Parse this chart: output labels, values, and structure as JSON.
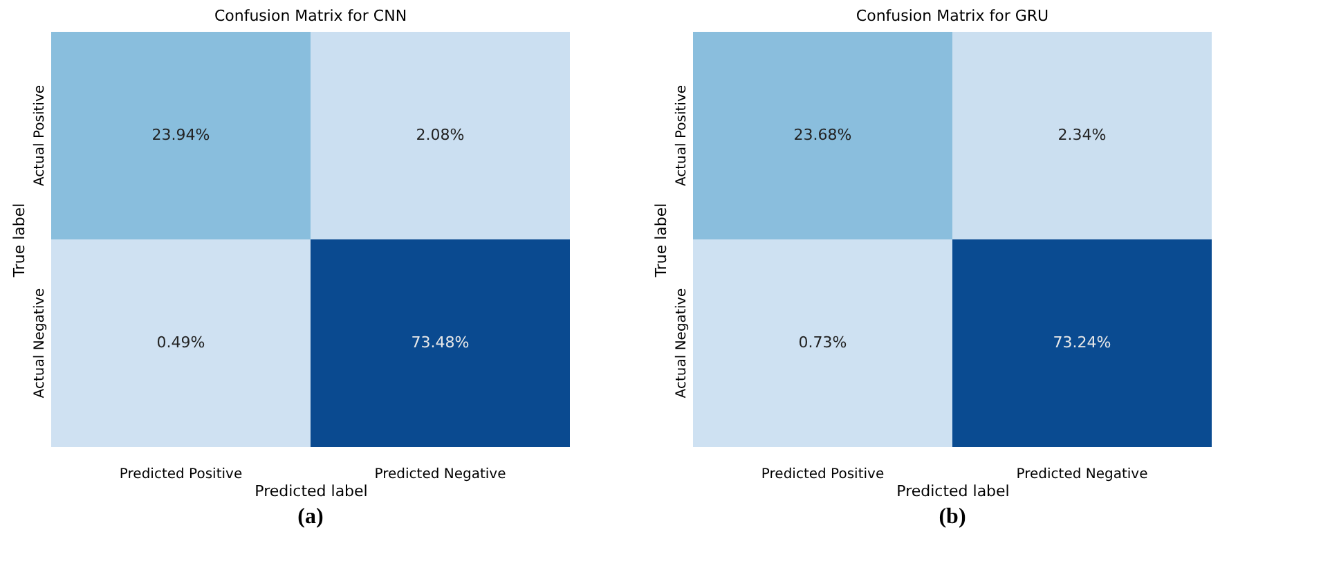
{
  "chart_data": [
    {
      "type": "heatmap",
      "title": "Confusion Matrix for CNN",
      "xlabel": "Predicted label",
      "ylabel": "True label",
      "categories": [
        "Predicted Positive",
        "Predicted Negative"
      ],
      "y_categories": [
        "Actual Positive",
        "Actual Negative"
      ],
      "cells": [
        [
          23.94,
          2.08
        ],
        [
          0.49,
          73.48
        ]
      ],
      "cell_labels": [
        [
          "23.94%",
          "2.08%"
        ],
        [
          "0.49%",
          "73.48%"
        ]
      ],
      "annotations": [
        "(a)"
      ]
    },
    {
      "type": "heatmap",
      "title": "Confusion Matrix for GRU",
      "xlabel": "Predicted label",
      "ylabel": "True label",
      "categories": [
        "Predicted Positive",
        "Predicted Negative"
      ],
      "y_categories": [
        "Actual Positive",
        "Actual Negative"
      ],
      "cells": [
        [
          23.68,
          2.34
        ],
        [
          0.73,
          73.24
        ]
      ],
      "cell_labels": [
        [
          "23.68%",
          "2.34%"
        ],
        [
          "0.73%",
          "73.24%"
        ]
      ],
      "annotations": [
        "(b)"
      ]
    }
  ]
}
